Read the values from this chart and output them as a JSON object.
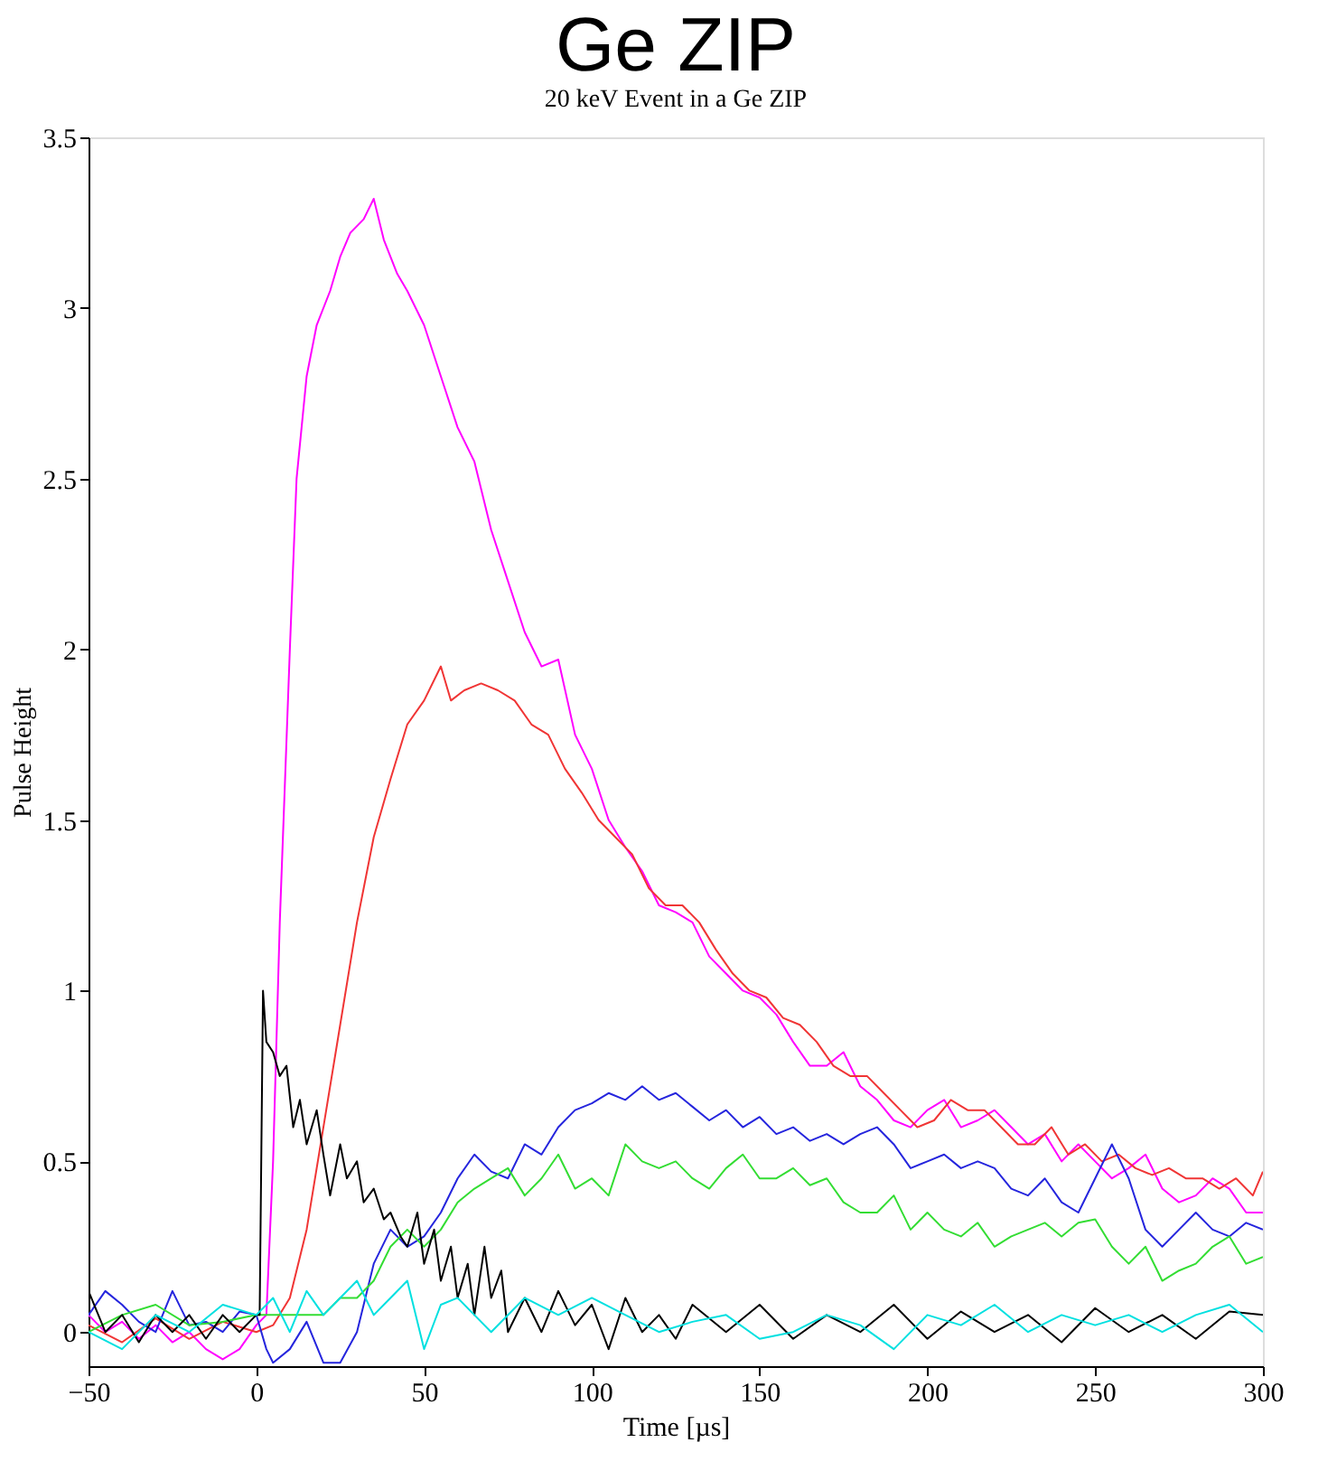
{
  "chart_data": {
    "type": "line",
    "title": "Ge ZIP",
    "subtitle": "20 keV Event in a Ge ZIP",
    "xlabel": "Time [µs]",
    "ylabel": "Pulse Height",
    "xlim": [
      -50,
      300
    ],
    "xticks": [
      -50,
      0,
      50,
      100,
      150,
      200,
      250,
      300
    ],
    "ylim": [
      -0.1,
      3.5
    ],
    "yticks": [
      0,
      0.5,
      1,
      1.5,
      2,
      2.5,
      3,
      3.5
    ],
    "grid": false,
    "legend": false,
    "marker": "none",
    "line_style": "solid",
    "series": [
      {
        "color": "#ff00ff",
        "x": [
          -50,
          -45,
          -40,
          -35,
          -30,
          -25,
          -20,
          -15,
          -10,
          -5,
          0,
          3,
          5,
          7,
          10,
          12,
          15,
          18,
          22,
          25,
          28,
          32,
          35,
          38,
          42,
          45,
          50,
          55,
          60,
          65,
          70,
          75,
          80,
          85,
          90,
          95,
          100,
          105,
          110,
          115,
          120,
          125,
          130,
          135,
          140,
          145,
          150,
          155,
          160,
          165,
          170,
          175,
          180,
          185,
          190,
          195,
          200,
          205,
          210,
          215,
          220,
          225,
          230,
          235,
          240,
          245,
          250,
          255,
          260,
          265,
          270,
          275,
          280,
          285,
          290,
          295,
          300
        ],
        "values": [
          0.05,
          0.0,
          0.03,
          -0.02,
          0.02,
          -0.03,
          0.0,
          -0.05,
          -0.08,
          -0.05,
          0.02,
          0.05,
          0.5,
          1.2,
          2.0,
          2.5,
          2.8,
          2.95,
          3.05,
          3.15,
          3.22,
          3.26,
          3.32,
          3.2,
          3.1,
          3.05,
          2.95,
          2.8,
          2.65,
          2.55,
          2.35,
          2.2,
          2.05,
          1.95,
          1.97,
          1.75,
          1.65,
          1.5,
          1.42,
          1.35,
          1.25,
          1.23,
          1.2,
          1.1,
          1.05,
          1.0,
          0.98,
          0.93,
          0.85,
          0.78,
          0.78,
          0.82,
          0.72,
          0.68,
          0.62,
          0.6,
          0.65,
          0.68,
          0.6,
          0.62,
          0.65,
          0.6,
          0.55,
          0.58,
          0.5,
          0.55,
          0.5,
          0.45,
          0.48,
          0.52,
          0.42,
          0.38,
          0.4,
          0.45,
          0.42,
          0.35,
          0.35
        ]
      },
      {
        "color": "#f03535",
        "x": [
          -50,
          -40,
          -30,
          -20,
          -10,
          0,
          5,
          10,
          15,
          20,
          25,
          30,
          35,
          40,
          45,
          50,
          55,
          58,
          62,
          67,
          72,
          77,
          82,
          87,
          92,
          97,
          102,
          107,
          112,
          117,
          122,
          127,
          132,
          137,
          142,
          147,
          152,
          157,
          162,
          167,
          172,
          177,
          182,
          187,
          192,
          197,
          202,
          207,
          212,
          217,
          222,
          227,
          232,
          237,
          242,
          247,
          252,
          257,
          262,
          267,
          272,
          277,
          282,
          287,
          292,
          297,
          300
        ],
        "values": [
          0.02,
          -0.03,
          0.04,
          -0.02,
          0.03,
          0.0,
          0.02,
          0.1,
          0.3,
          0.6,
          0.9,
          1.2,
          1.45,
          1.62,
          1.78,
          1.85,
          1.95,
          1.85,
          1.88,
          1.9,
          1.88,
          1.85,
          1.78,
          1.75,
          1.65,
          1.58,
          1.5,
          1.45,
          1.4,
          1.3,
          1.25,
          1.25,
          1.2,
          1.12,
          1.05,
          1.0,
          0.98,
          0.92,
          0.9,
          0.85,
          0.78,
          0.75,
          0.75,
          0.7,
          0.65,
          0.6,
          0.62,
          0.68,
          0.65,
          0.65,
          0.6,
          0.55,
          0.55,
          0.6,
          0.52,
          0.55,
          0.5,
          0.52,
          0.48,
          0.46,
          0.48,
          0.45,
          0.45,
          0.42,
          0.45,
          0.4,
          0.47
        ]
      },
      {
        "color": "#2525dd",
        "x": [
          -50,
          -45,
          -40,
          -35,
          -30,
          -25,
          -20,
          -15,
          -10,
          -5,
          0,
          3,
          5,
          10,
          15,
          20,
          25,
          30,
          35,
          40,
          45,
          50,
          55,
          60,
          65,
          70,
          75,
          80,
          85,
          90,
          95,
          100,
          105,
          110,
          115,
          120,
          125,
          130,
          135,
          140,
          145,
          150,
          155,
          160,
          165,
          170,
          175,
          180,
          185,
          190,
          195,
          200,
          205,
          210,
          215,
          220,
          225,
          230,
          235,
          240,
          245,
          250,
          255,
          260,
          265,
          270,
          275,
          280,
          285,
          290,
          295,
          300
        ],
        "values": [
          0.05,
          0.12,
          0.08,
          0.03,
          0.0,
          0.12,
          0.02,
          0.03,
          0.0,
          0.06,
          0.05,
          -0.05,
          -0.09,
          -0.05,
          0.03,
          -0.09,
          -0.09,
          0.0,
          0.2,
          0.3,
          0.25,
          0.28,
          0.35,
          0.45,
          0.52,
          0.47,
          0.45,
          0.55,
          0.52,
          0.6,
          0.65,
          0.67,
          0.7,
          0.68,
          0.72,
          0.68,
          0.7,
          0.66,
          0.62,
          0.65,
          0.6,
          0.63,
          0.58,
          0.6,
          0.56,
          0.58,
          0.55,
          0.58,
          0.6,
          0.55,
          0.48,
          0.5,
          0.52,
          0.48,
          0.5,
          0.48,
          0.42,
          0.4,
          0.45,
          0.38,
          0.35,
          0.45,
          0.55,
          0.45,
          0.3,
          0.25,
          0.3,
          0.35,
          0.3,
          0.28,
          0.32,
          0.3
        ]
      },
      {
        "color": "#33dd33",
        "x": [
          -50,
          -40,
          -30,
          -20,
          -10,
          0,
          10,
          20,
          25,
          30,
          35,
          40,
          45,
          50,
          55,
          60,
          65,
          70,
          75,
          80,
          85,
          90,
          95,
          100,
          105,
          110,
          115,
          120,
          125,
          130,
          135,
          140,
          145,
          150,
          155,
          160,
          165,
          170,
          175,
          180,
          185,
          190,
          195,
          200,
          205,
          210,
          215,
          220,
          225,
          230,
          235,
          240,
          245,
          250,
          255,
          260,
          265,
          270,
          275,
          280,
          285,
          290,
          295,
          300
        ],
        "values": [
          0.0,
          0.05,
          0.08,
          0.02,
          0.03,
          0.05,
          0.05,
          0.05,
          0.1,
          0.1,
          0.15,
          0.25,
          0.3,
          0.25,
          0.3,
          0.38,
          0.42,
          0.45,
          0.48,
          0.4,
          0.45,
          0.52,
          0.42,
          0.45,
          0.4,
          0.55,
          0.5,
          0.48,
          0.5,
          0.45,
          0.42,
          0.48,
          0.52,
          0.45,
          0.45,
          0.48,
          0.43,
          0.45,
          0.38,
          0.35,
          0.35,
          0.4,
          0.3,
          0.35,
          0.3,
          0.28,
          0.32,
          0.25,
          0.28,
          0.3,
          0.32,
          0.28,
          0.32,
          0.33,
          0.25,
          0.2,
          0.25,
          0.15,
          0.18,
          0.2,
          0.25,
          0.28,
          0.2,
          0.22
        ]
      },
      {
        "color": "#000000",
        "x": [
          -50,
          -45,
          -40,
          -35,
          -30,
          -25,
          -20,
          -15,
          -10,
          -5,
          0,
          1,
          2,
          3,
          5,
          7,
          9,
          11,
          13,
          15,
          18,
          20,
          22,
          25,
          27,
          30,
          32,
          35,
          38,
          40,
          43,
          45,
          48,
          50,
          53,
          55,
          58,
          60,
          63,
          65,
          68,
          70,
          73,
          75,
          80,
          85,
          90,
          95,
          100,
          105,
          110,
          115,
          120,
          125,
          130,
          140,
          150,
          160,
          170,
          180,
          190,
          200,
          210,
          220,
          230,
          240,
          250,
          260,
          270,
          280,
          290,
          300
        ],
        "values": [
          0.12,
          0.0,
          0.05,
          -0.03,
          0.05,
          0.0,
          0.05,
          -0.02,
          0.05,
          0.0,
          0.05,
          0.05,
          1.0,
          0.85,
          0.82,
          0.75,
          0.78,
          0.6,
          0.68,
          0.55,
          0.65,
          0.52,
          0.4,
          0.55,
          0.45,
          0.5,
          0.38,
          0.42,
          0.33,
          0.35,
          0.28,
          0.25,
          0.35,
          0.2,
          0.3,
          0.15,
          0.25,
          0.1,
          0.2,
          0.05,
          0.25,
          0.1,
          0.18,
          0.0,
          0.1,
          0.0,
          0.12,
          0.02,
          0.08,
          -0.05,
          0.1,
          0.0,
          0.05,
          -0.02,
          0.08,
          0.0,
          0.08,
          -0.02,
          0.05,
          0.0,
          0.08,
          -0.02,
          0.06,
          0.0,
          0.05,
          -0.03,
          0.07,
          0.0,
          0.05,
          -0.02,
          0.06,
          0.05
        ]
      },
      {
        "color": "#00e0e0",
        "x": [
          -50,
          -40,
          -30,
          -20,
          -10,
          0,
          5,
          10,
          15,
          20,
          25,
          30,
          35,
          40,
          45,
          50,
          55,
          60,
          65,
          70,
          80,
          90,
          100,
          110,
          120,
          130,
          140,
          150,
          160,
          170,
          180,
          190,
          200,
          210,
          220,
          230,
          240,
          250,
          260,
          270,
          280,
          290,
          300
        ],
        "values": [
          0.0,
          -0.05,
          0.05,
          0.0,
          0.08,
          0.05,
          0.1,
          0.0,
          0.12,
          0.05,
          0.1,
          0.15,
          0.05,
          0.1,
          0.15,
          -0.05,
          0.08,
          0.1,
          0.05,
          0.0,
          0.1,
          0.05,
          0.1,
          0.05,
          0.0,
          0.03,
          0.05,
          -0.02,
          0.0,
          0.05,
          0.02,
          -0.05,
          0.05,
          0.02,
          0.08,
          0.0,
          0.05,
          0.02,
          0.05,
          0.0,
          0.05,
          0.08,
          0.0
        ]
      }
    ]
  }
}
